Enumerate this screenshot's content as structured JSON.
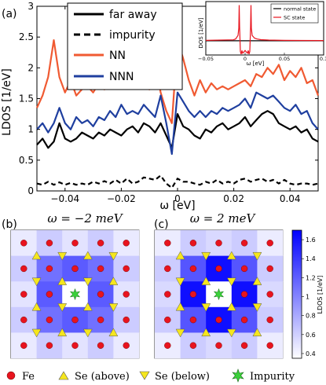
{
  "chart_data": [
    {
      "id": "a",
      "panel_label": "(a)",
      "type": "line",
      "xlabel": "ω [eV]",
      "ylabel": "LDOS [1/eV]",
      "xlim": [
        -0.05,
        0.05
      ],
      "ylim": [
        0,
        3
      ],
      "xticks": [
        -0.04,
        -0.02,
        0,
        0.02,
        0.04
      ],
      "xtick_labels": [
        "−0.04",
        "−0.02",
        "0",
        "0.02",
        "0.04"
      ],
      "yticks": [
        0,
        0.5,
        1,
        1.5,
        2,
        2.5,
        3
      ],
      "ytick_labels": [
        "0",
        "0.5",
        "1",
        "1.5",
        "2",
        "2.5",
        "3"
      ],
      "legend_position": "top-center",
      "x": [
        -0.05,
        -0.048,
        -0.046,
        -0.044,
        -0.042,
        -0.04,
        -0.038,
        -0.036,
        -0.034,
        -0.032,
        -0.03,
        -0.028,
        -0.026,
        -0.024,
        -0.022,
        -0.02,
        -0.018,
        -0.016,
        -0.014,
        -0.012,
        -0.01,
        -0.008,
        -0.006,
        -0.004,
        -0.002,
        0,
        0.002,
        0.004,
        0.006,
        0.008,
        0.01,
        0.012,
        0.014,
        0.016,
        0.018,
        0.02,
        0.022,
        0.024,
        0.026,
        0.028,
        0.03,
        0.032,
        0.034,
        0.036,
        0.038,
        0.04,
        0.042,
        0.044,
        0.046,
        0.048,
        0.05
      ],
      "series": [
        {
          "name": "far away",
          "color": "#000000",
          "dash": "solid",
          "values": [
            0.75,
            0.85,
            0.7,
            0.8,
            1.1,
            0.85,
            0.8,
            0.85,
            0.95,
            0.9,
            0.85,
            0.95,
            0.9,
            1.0,
            0.95,
            0.9,
            1.0,
            1.05,
            0.95,
            1.1,
            1.05,
            0.95,
            1.1,
            0.9,
            0.7,
            1.25,
            1.05,
            1.0,
            0.9,
            0.85,
            1.0,
            0.95,
            1.05,
            1.1,
            1.0,
            1.05,
            1.1,
            1.2,
            1.05,
            1.15,
            1.25,
            1.3,
            1.25,
            1.1,
            1.05,
            1.0,
            1.05,
            0.95,
            1.0,
            0.85,
            0.8
          ]
        },
        {
          "name": "impurity",
          "color": "#000000",
          "dash": "dashed",
          "values": [
            0.12,
            0.1,
            0.15,
            0.1,
            0.14,
            0.1,
            0.13,
            0.1,
            0.12,
            0.1,
            0.15,
            0.12,
            0.16,
            0.12,
            0.18,
            0.12,
            0.2,
            0.12,
            0.15,
            0.22,
            0.2,
            0.18,
            0.25,
            0.12,
            0.05,
            0.2,
            0.15,
            0.15,
            0.12,
            0.1,
            0.15,
            0.12,
            0.18,
            0.12,
            0.15,
            0.12,
            0.18,
            0.2,
            0.15,
            0.18,
            0.2,
            0.15,
            0.18,
            0.12,
            0.18,
            0.12,
            0.1,
            0.12,
            0.12,
            0.1,
            0.12
          ]
        },
        {
          "name": "NN",
          "color": "#f05a32",
          "dash": "solid",
          "values": [
            1.35,
            1.55,
            1.85,
            2.45,
            1.85,
            1.6,
            1.8,
            1.55,
            1.65,
            1.7,
            1.6,
            1.75,
            1.65,
            1.8,
            1.7,
            2.05,
            1.75,
            1.8,
            1.7,
            1.85,
            1.65,
            2.1,
            1.6,
            1.3,
            1.1,
            2.45,
            2.15,
            1.8,
            1.55,
            1.8,
            1.6,
            1.75,
            1.65,
            1.7,
            1.65,
            1.7,
            1.75,
            1.8,
            1.7,
            1.9,
            1.85,
            2.0,
            1.9,
            2.05,
            1.8,
            1.95,
            1.85,
            2.0,
            1.75,
            1.8,
            1.55
          ]
        },
        {
          "name": "NNN",
          "color": "#1f3f9f",
          "dash": "solid",
          "values": [
            1.0,
            1.1,
            0.95,
            1.1,
            1.35,
            1.1,
            1.0,
            1.2,
            1.1,
            1.15,
            1.05,
            1.2,
            1.15,
            1.3,
            1.2,
            1.4,
            1.25,
            1.3,
            1.25,
            1.4,
            1.3,
            1.2,
            1.55,
            1.1,
            0.6,
            1.6,
            1.45,
            1.3,
            1.2,
            1.3,
            1.2,
            1.3,
            1.25,
            1.35,
            1.3,
            1.35,
            1.4,
            1.5,
            1.35,
            1.6,
            1.55,
            1.5,
            1.55,
            1.45,
            1.35,
            1.3,
            1.4,
            1.25,
            1.3,
            1.1,
            1.0
          ]
        }
      ]
    },
    {
      "id": "inset",
      "type": "line",
      "xlabel": "ω [eV]",
      "ylabel": "DOS [1/eV]",
      "xlim": [
        -0.05,
        0.1
      ],
      "ylim": [
        0,
        3
      ],
      "xticks": [
        -0.05,
        0,
        0.05,
        0.1
      ],
      "xtick_labels": [
        "−0.05",
        "0",
        "0.05",
        "0.1"
      ],
      "legend_position": "right",
      "series": [
        {
          "name": "normal state",
          "color": "#000000",
          "x": [
            -0.05,
            0.1
          ],
          "values": [
            0.8,
            0.8
          ]
        },
        {
          "name": "SC state",
          "color": "#e8141e",
          "x": [
            -0.05,
            -0.015,
            -0.012,
            -0.009,
            -0.008,
            -0.0075,
            -0.007,
            -0.006,
            -0.005,
            -0.004,
            -0.003,
            0,
            0.003,
            0.004,
            0.005,
            0.006,
            0.007,
            0.0075,
            0.008,
            0.009,
            0.012,
            0.015,
            0.02,
            0.03,
            0.05,
            0.1
          ],
          "values": [
            0.82,
            0.85,
            0.9,
            1.1,
            1.5,
            2.8,
            1.6,
            0.2,
            0.05,
            0.25,
            0.1,
            0.25,
            0.1,
            0.25,
            0.05,
            0.2,
            1.6,
            2.8,
            1.5,
            1.1,
            0.95,
            0.9,
            0.86,
            0.84,
            0.82,
            0.81
          ]
        }
      ]
    },
    {
      "id": "b",
      "panel_label": "(b)",
      "type": "heatmap",
      "title": "ω = −2 meV",
      "values": [
        [
          0.46,
          0.62,
          0.5,
          0.62,
          0.46
        ],
        [
          0.62,
          1.1,
          1.22,
          1.1,
          0.62
        ],
        [
          0.5,
          1.22,
          0.35,
          1.22,
          0.5
        ],
        [
          0.62,
          1.1,
          1.22,
          1.1,
          0.62
        ],
        [
          0.46,
          0.62,
          0.5,
          0.62,
          0.46
        ]
      ]
    },
    {
      "id": "c",
      "panel_label": "(c)",
      "type": "heatmap",
      "title": "ω = 2 meV",
      "values": [
        [
          0.45,
          0.62,
          0.55,
          0.62,
          0.45
        ],
        [
          0.62,
          1.25,
          1.62,
          1.25,
          0.62
        ],
        [
          0.55,
          1.62,
          0.35,
          1.62,
          0.55
        ],
        [
          0.62,
          1.25,
          1.62,
          1.25,
          0.62
        ],
        [
          0.45,
          0.62,
          0.55,
          0.62,
          0.45
        ]
      ]
    }
  ],
  "colorbar": {
    "label": "LDOS [1/eV]",
    "vmin": 0.35,
    "vmax": 1.7,
    "ticks": [
      0.4,
      0.6,
      0.8,
      1,
      1.2,
      1.4,
      1.6
    ],
    "tick_labels": [
      "0.4",
      "0.6",
      "0.8",
      "1",
      "1.2",
      "1.4",
      "1.6"
    ],
    "color_low": "#ffffff",
    "color_high": "#0000ff"
  },
  "markers": {
    "fe_color": "#e8141e",
    "se_color": "#f5e61e",
    "impurity_color": "#3ad13a"
  },
  "bottom_legend": [
    {
      "symbol": "circle",
      "label": "Fe",
      "color": "#e8141e"
    },
    {
      "symbol": "triangle-up",
      "label": "Se (above)",
      "color": "#f5e61e"
    },
    {
      "symbol": "triangle-down",
      "label": "Se (below)",
      "color": "#f5e61e"
    },
    {
      "symbol": "star",
      "label": "Impurity",
      "color": "#3ad13a"
    }
  ]
}
